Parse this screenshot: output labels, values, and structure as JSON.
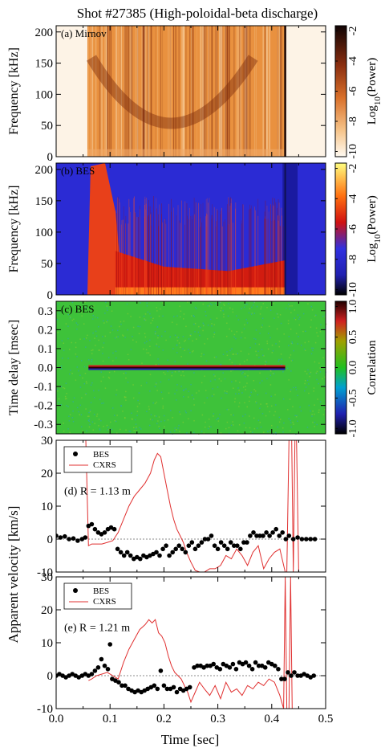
{
  "title": "Shot #27385 (High-poloidal-beta discharge)",
  "chart_data": [
    {
      "type": "heatmap",
      "panel_label": "(a) Mirnov",
      "ylabel": "Frequency [kHz]",
      "ylim": [
        0,
        210
      ],
      "yticks": [
        0,
        50,
        100,
        150,
        200
      ],
      "xlim": [
        0.0,
        0.5
      ],
      "colorbar": {
        "label": "Log10(Power)",
        "ticks": [
          -2,
          -4,
          -6,
          -8,
          -10
        ]
      },
      "features": [
        {
          "from": 0.0,
          "to": 0.058,
          "level": "low"
        },
        {
          "from": 0.058,
          "to": 0.425,
          "level": "high"
        },
        {
          "from": 0.425,
          "to": 0.45,
          "level": "low"
        }
      ]
    },
    {
      "type": "heatmap",
      "panel_label": "(b) BES",
      "ylabel": "Frequency [kHz]",
      "ylim": [
        0,
        210
      ],
      "yticks": [
        0,
        50,
        100,
        150,
        200
      ],
      "xlim": [
        0.0,
        0.5
      ],
      "colorbar": {
        "label": "Log10(Power)",
        "ticks": [
          -2,
          -4,
          -6,
          -8,
          -10
        ]
      },
      "features": [
        {
          "from": 0.0,
          "to": 0.058,
          "level": "noise"
        },
        {
          "from": 0.058,
          "to": 0.11,
          "level": "broadband"
        },
        {
          "from": 0.11,
          "to": 0.425,
          "level": "low_frequency"
        }
      ]
    },
    {
      "type": "heatmap",
      "panel_label": "(c) BES",
      "ylabel": "Time delay [msec]",
      "ylim": [
        -0.35,
        0.35
      ],
      "yticks": [
        0.3,
        0.2,
        0.1,
        0.0,
        -0.1,
        -0.2,
        -0.3
      ],
      "xlim": [
        0.0,
        0.5
      ],
      "colorbar": {
        "label": "Correlation",
        "ticks": [
          1.0,
          0.5,
          0.0,
          -0.5,
          -1.0
        ]
      },
      "features": [
        {
          "from": 0.06,
          "to": 0.425,
          "level": "peak_at_zero_delay"
        }
      ]
    },
    {
      "type": "scatter",
      "panel_label": "(d) R = 1.13 m",
      "ylabel": "Apparent velocity [km/s]",
      "ylim": [
        -10,
        30
      ],
      "yticks": [
        -10,
        0,
        10,
        20,
        30
      ],
      "xlim": [
        0.0,
        0.5
      ],
      "legend": [
        "BES",
        "CXRS"
      ],
      "series": [
        {
          "name": "BES",
          "x": [
            0.0,
            0.008,
            0.016,
            0.024,
            0.032,
            0.04,
            0.048,
            0.054,
            0.06,
            0.066,
            0.072,
            0.078,
            0.084,
            0.09,
            0.096,
            0.102,
            0.108,
            0.114,
            0.12,
            0.126,
            0.132,
            0.138,
            0.144,
            0.15,
            0.156,
            0.162,
            0.168,
            0.174,
            0.18,
            0.186,
            0.192,
            0.198,
            0.204,
            0.21,
            0.216,
            0.222,
            0.228,
            0.234,
            0.24,
            0.246,
            0.252,
            0.258,
            0.264,
            0.27,
            0.276,
            0.282,
            0.288,
            0.294,
            0.3,
            0.306,
            0.312,
            0.318,
            0.324,
            0.33,
            0.336,
            0.342,
            0.348,
            0.354,
            0.36,
            0.366,
            0.372,
            0.378,
            0.384,
            0.39,
            0.396,
            0.402,
            0.408,
            0.414,
            0.42,
            0.426,
            0.432,
            0.44,
            0.448,
            0.456,
            0.464,
            0.472,
            0.48
          ],
          "y": [
            1,
            0.5,
            0.8,
            0,
            0.2,
            -0.5,
            0,
            0.5,
            4,
            4.5,
            3,
            2,
            1.5,
            2,
            3,
            3.5,
            3,
            -3,
            -4,
            -5,
            -4,
            -5,
            -6,
            -5.5,
            -6,
            -5,
            -5.5,
            -5,
            -4.5,
            -4,
            -5,
            -3,
            -2,
            -5,
            -4,
            -3,
            -2,
            -3,
            -4,
            -2,
            -1,
            -3,
            -2,
            -1,
            0,
            0,
            1,
            -2,
            -3,
            -1,
            -2,
            -3,
            -1,
            -2,
            -2,
            -3,
            -1,
            -1,
            1,
            2,
            1,
            1,
            1,
            2,
            1,
            2,
            3,
            1,
            2,
            0,
            1,
            0,
            0.5,
            0,
            0,
            0,
            0
          ]
        },
        {
          "name": "CXRS",
          "x": [
            0.055,
            0.06,
            0.066,
            0.075,
            0.085,
            0.095,
            0.105,
            0.115,
            0.125,
            0.135,
            0.145,
            0.155,
            0.165,
            0.175,
            0.182,
            0.188,
            0.194,
            0.2,
            0.206,
            0.212,
            0.218,
            0.224,
            0.23,
            0.236,
            0.242,
            0.25,
            0.258,
            0.266,
            0.275,
            0.285,
            0.295,
            0.305,
            0.315,
            0.325,
            0.335,
            0.345,
            0.355,
            0.365,
            0.375,
            0.385,
            0.395,
            0.405,
            0.415,
            0.425,
            0.428,
            0.432,
            0.437,
            0.44,
            0.443,
            0.446,
            0.45
          ],
          "y": [
            30,
            -2,
            -1.5,
            -1.5,
            -1.5,
            -1,
            -0.5,
            2,
            6,
            10,
            13,
            15,
            17,
            20,
            24,
            26,
            25,
            20,
            15,
            10,
            6,
            3,
            1,
            -1,
            -4,
            -7,
            -9.5,
            -10,
            -10,
            -9,
            -9,
            -8,
            -5,
            -6,
            -3,
            -5,
            -8,
            -4,
            -2,
            -9,
            -6,
            -4,
            -3,
            -10,
            -10,
            30,
            30,
            -10,
            30,
            30,
            -10
          ]
        }
      ]
    },
    {
      "type": "scatter",
      "panel_label": "(e) R = 1.21 m",
      "ylabel": "Apparent velocity [km/s]",
      "ylim": [
        -10,
        30
      ],
      "yticks": [
        -10,
        0,
        10,
        20,
        30
      ],
      "xlim": [
        0.0,
        0.5
      ],
      "xlabel": "Time [sec]",
      "xticks": [
        0.0,
        0.1,
        0.2,
        0.3,
        0.4,
        0.5
      ],
      "legend": [
        "BES",
        "CXRS"
      ],
      "series": [
        {
          "name": "BES",
          "x": [
            0.0,
            0.006,
            0.012,
            0.018,
            0.024,
            0.03,
            0.036,
            0.042,
            0.048,
            0.054,
            0.06,
            0.066,
            0.072,
            0.078,
            0.084,
            0.09,
            0.096,
            0.1,
            0.104,
            0.11,
            0.116,
            0.122,
            0.128,
            0.134,
            0.14,
            0.146,
            0.152,
            0.158,
            0.164,
            0.17,
            0.176,
            0.182,
            0.188,
            0.194,
            0.2,
            0.206,
            0.212,
            0.218,
            0.224,
            0.23,
            0.236,
            0.242,
            0.248,
            0.256,
            0.262,
            0.268,
            0.274,
            0.28,
            0.286,
            0.292,
            0.298,
            0.304,
            0.31,
            0.316,
            0.322,
            0.328,
            0.334,
            0.34,
            0.346,
            0.352,
            0.358,
            0.364,
            0.37,
            0.376,
            0.382,
            0.388,
            0.394,
            0.4,
            0.406,
            0.412,
            0.418,
            0.424,
            0.43,
            0.436,
            0.442,
            0.448,
            0.454,
            0.46,
            0.466,
            0.472,
            0.478
          ],
          "y": [
            0,
            0.5,
            0,
            -0.5,
            0,
            0.5,
            0,
            -0.5,
            0,
            0.5,
            0,
            0.5,
            1.5,
            2.5,
            5,
            3,
            2,
            9.5,
            -1,
            -1.5,
            -2,
            -3,
            -3,
            -4,
            -4.5,
            -5,
            -4.5,
            -5,
            -4.5,
            -4,
            -3.5,
            -3,
            -4,
            1.5,
            -3,
            -4,
            -4,
            -3.5,
            -5,
            -4,
            -4.5,
            -4,
            -3.5,
            2.5,
            3,
            3,
            2.5,
            3,
            3,
            3.5,
            2.5,
            2,
            3.5,
            3,
            2.5,
            3.5,
            2,
            4,
            3.5,
            4,
            3,
            2,
            4,
            3,
            3,
            2.5,
            4,
            3.5,
            3,
            2,
            -1,
            -1,
            1,
            0,
            1,
            0,
            0,
            0.5,
            0,
            -0.5,
            0
          ]
        },
        {
          "name": "CXRS",
          "x": [
            0.06,
            0.066,
            0.075,
            0.085,
            0.095,
            0.105,
            0.115,
            0.125,
            0.135,
            0.145,
            0.155,
            0.165,
            0.172,
            0.178,
            0.184,
            0.19,
            0.196,
            0.202,
            0.208,
            0.214,
            0.22,
            0.226,
            0.232,
            0.238,
            0.244,
            0.25,
            0.258,
            0.266,
            0.275,
            0.285,
            0.295,
            0.305,
            0.315,
            0.325,
            0.335,
            0.345,
            0.355,
            0.365,
            0.375,
            0.385,
            0.395,
            0.405,
            0.415,
            0.422,
            0.425,
            0.428,
            0.432,
            0.435,
            0.438
          ],
          "y": [
            -1.5,
            -1,
            0,
            0.5,
            1,
            0,
            -1,
            4,
            8,
            11,
            14,
            15.5,
            17,
            16,
            17,
            13,
            12,
            10,
            6,
            3,
            1,
            0,
            -1,
            -3,
            -5,
            -8,
            -5,
            -2,
            -4,
            -6,
            -3,
            -7,
            -2,
            -5,
            -4,
            -6,
            -3,
            -4,
            -2,
            -3,
            -1,
            -2,
            -6,
            -10,
            30,
            -10,
            -10,
            30,
            -10
          ]
        }
      ]
    }
  ]
}
